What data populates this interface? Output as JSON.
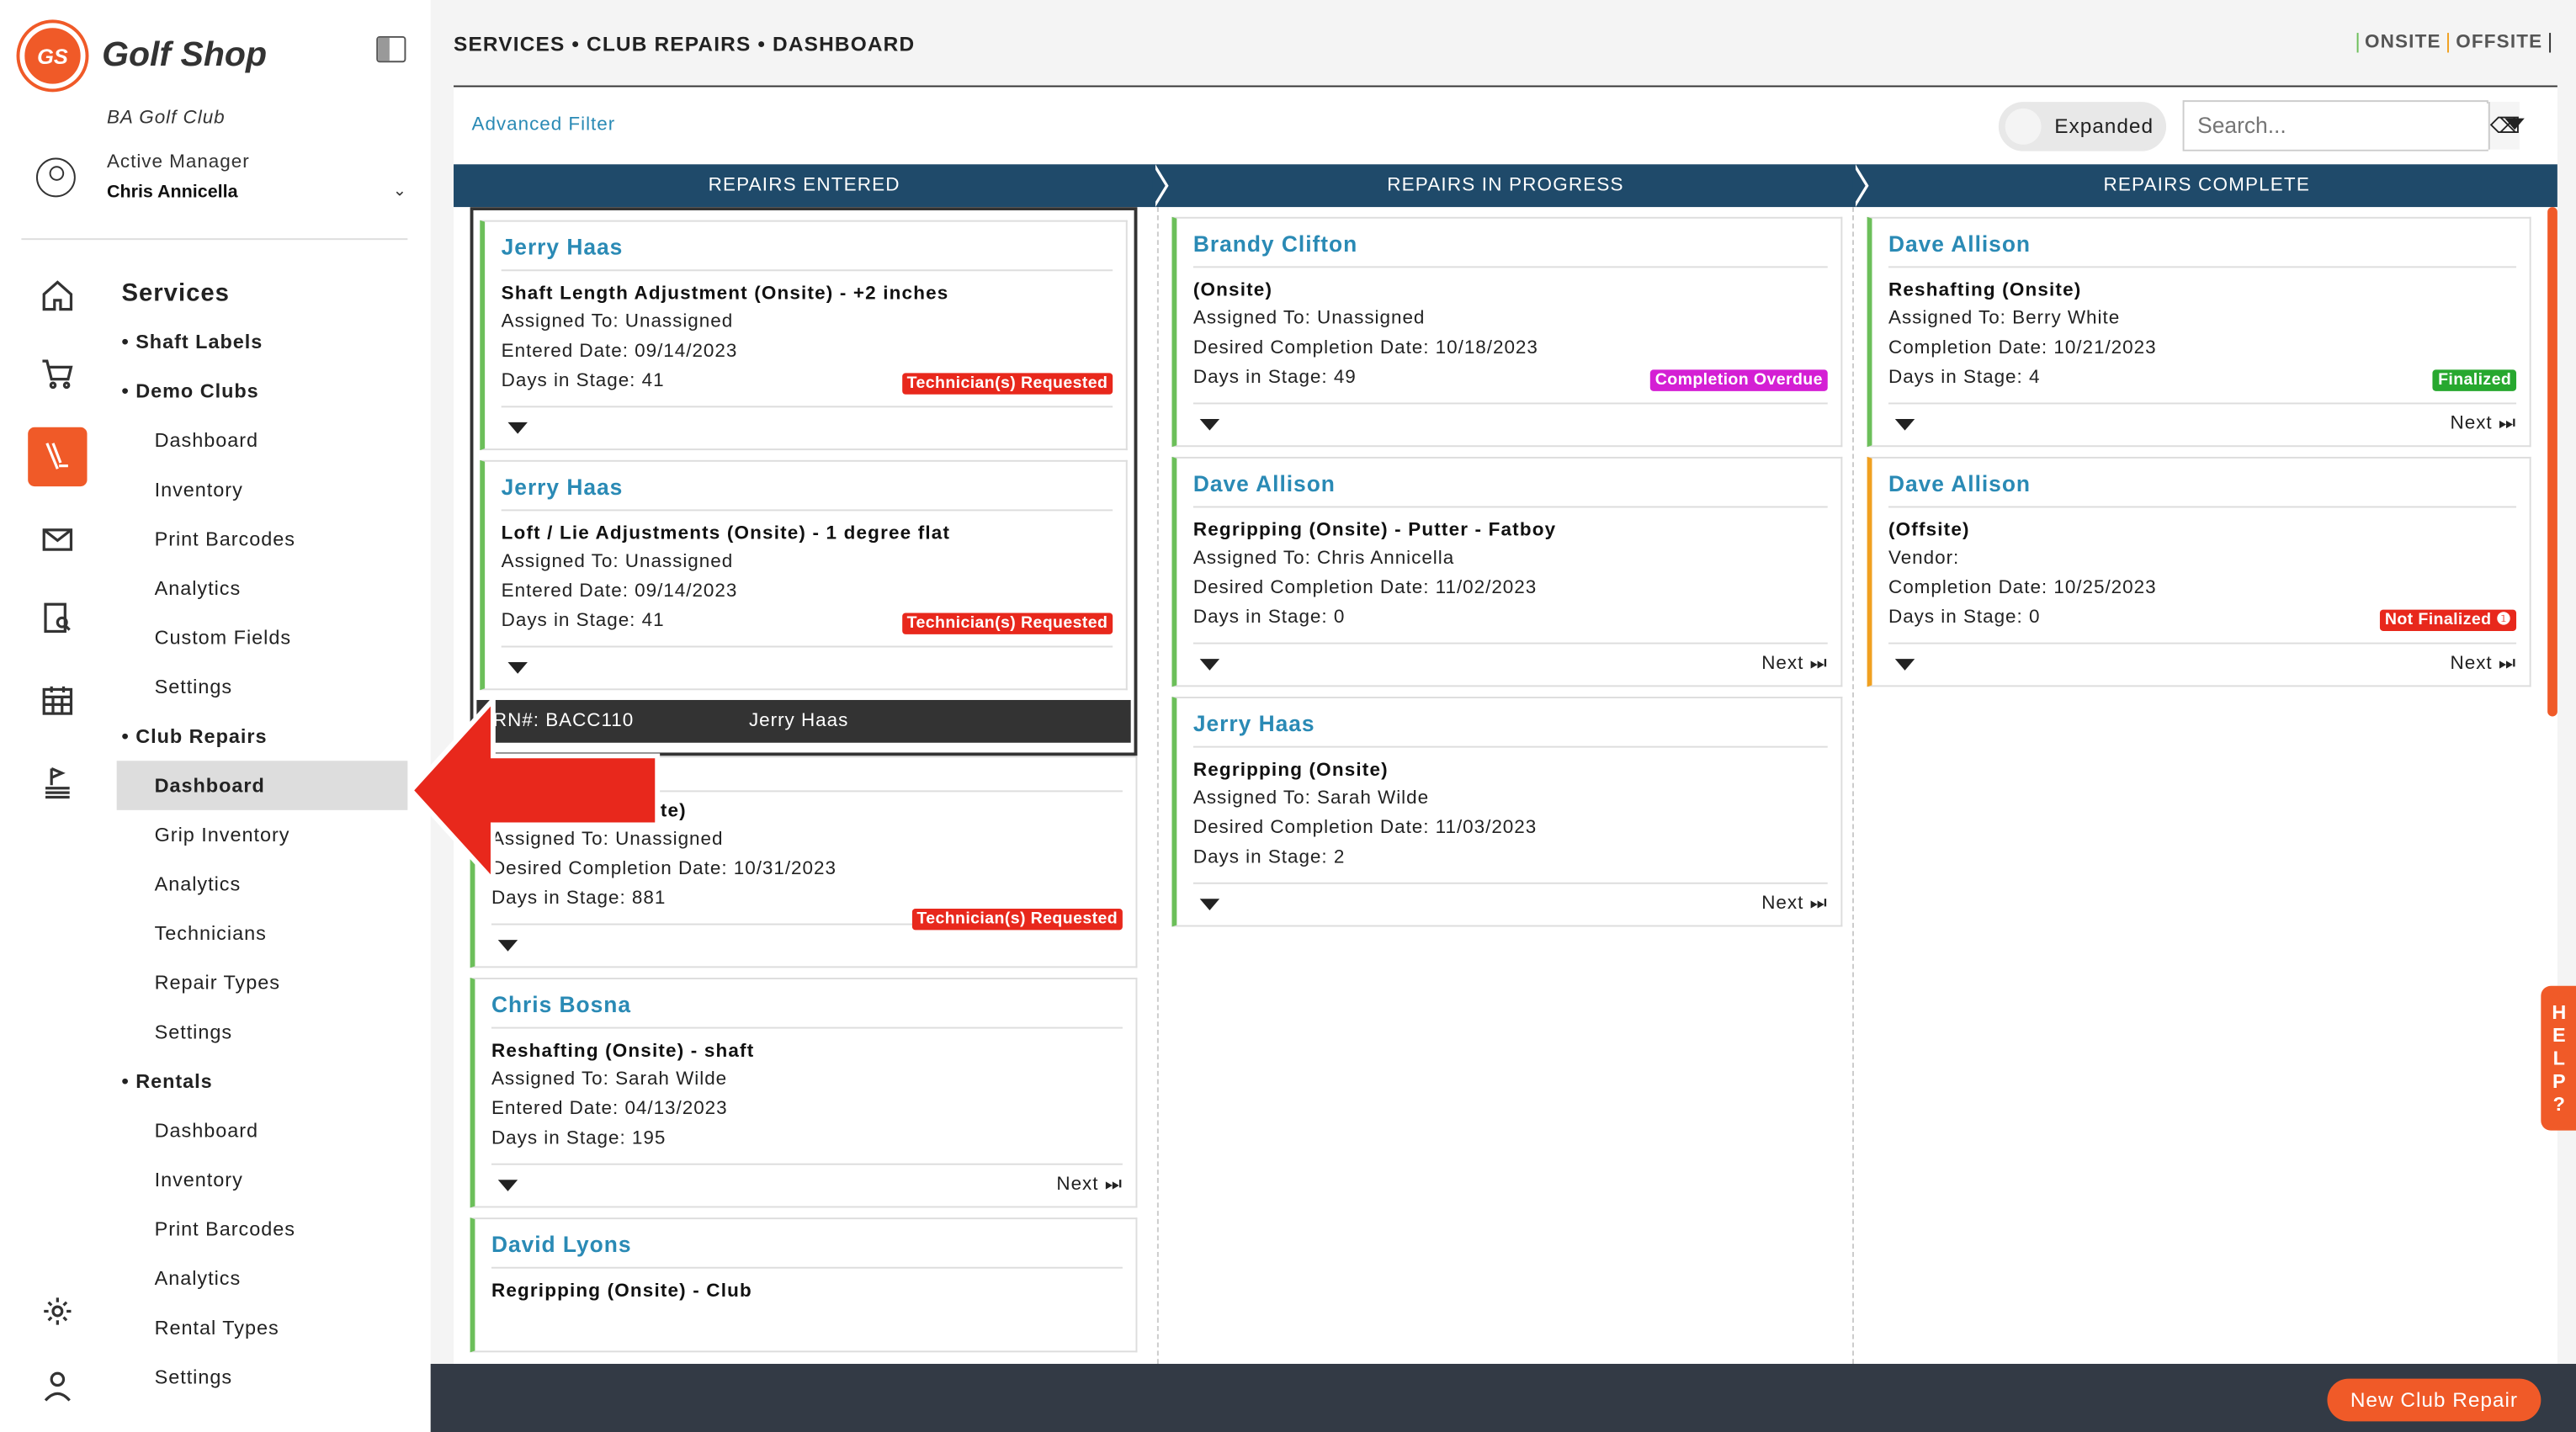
{
  "app": {
    "name": "Golf Shop",
    "logo_text": "GS",
    "club": "BA Golf Club",
    "manager_label": "Active Manager",
    "manager_name": "Chris Annicella"
  },
  "nav": {
    "title": "Services",
    "sections": [
      {
        "label": "• Shaft Labels",
        "items": []
      },
      {
        "label": "• Demo Clubs",
        "items": [
          "Dashboard",
          "Inventory",
          "Print Barcodes",
          "Analytics",
          "Custom Fields",
          "Settings"
        ]
      },
      {
        "label": "• Club Repairs",
        "items": [
          "Dashboard",
          "Grip Inventory",
          "Analytics",
          "Technicians",
          "Repair Types",
          "Settings"
        ]
      },
      {
        "label": "• Rentals",
        "items": [
          "Dashboard",
          "Inventory",
          "Print Barcodes",
          "Analytics",
          "Rental Types",
          "Settings"
        ]
      }
    ],
    "active_item": "Dashboard"
  },
  "header": {
    "breadcrumb": "SERVICES • CLUB REPAIRS • DASHBOARD",
    "onsite": "ONSITE",
    "offsite": "OFFSITE"
  },
  "toolbar": {
    "advanced_filter": "Advanced Filter",
    "expanded": "Expanded",
    "search_placeholder": "Search..."
  },
  "stages": [
    "REPAIRS ENTERED",
    "REPAIRS IN PROGRESS",
    "REPAIRS COMPLETE"
  ],
  "col1": {
    "cards": [
      {
        "name": "Jerry Haas",
        "type": "Shaft Length Adjustment (Onsite) - +2 inches",
        "l1": "Assigned To: Unassigned",
        "l2": "Entered Date: 09/14/2023",
        "l3": "Days in Stage: 41",
        "badge": "Technician(s) Requested"
      },
      {
        "name": "Jerry Haas",
        "type": "Loft / Lie Adjustments (Onsite) - 1 degree flat",
        "l1": "Assigned To: Unassigned",
        "l2": "Entered Date: 09/14/2023",
        "l3": "Days in Stage: 41",
        "badge": "Technician(s) Requested"
      }
    ],
    "hover_rn": "RN#: BACC110",
    "hover_name": "Jerry Haas",
    "card3": {
      "type": "Regripping (Onsite)",
      "l1": "Assigned To: Unassigned",
      "l2": "Desired Completion Date: 10/31/2023",
      "l3": "Days in Stage: 881",
      "badge": "Technician(s) Requested"
    },
    "card4": {
      "name": "Chris Bosna",
      "type": "Reshafting (Onsite) - shaft",
      "l1": "Assigned To: Sarah Wilde",
      "l2": "Entered Date: 04/13/2023",
      "l3": "Days in Stage: 195",
      "next": "Next"
    },
    "card5": {
      "name": "David Lyons",
      "type": "Regripping (Onsite) - Club"
    }
  },
  "col2": {
    "cards": [
      {
        "name": "Brandy Clifton",
        "type": "(Onsite)",
        "l1": "Assigned To: Unassigned",
        "l2": "Desired Completion Date: 10/18/2023",
        "l3": "Days in Stage: 49",
        "badge": "Completion Overdue"
      },
      {
        "name": "Dave Allison",
        "type": "Regripping (Onsite) - Putter - Fatboy",
        "l1": "Assigned To: Chris Annicella",
        "l2": "Desired Completion Date: 11/02/2023",
        "l3": "Days in Stage: 0",
        "next": "Next"
      },
      {
        "name": "Jerry Haas",
        "type": "Regripping (Onsite)",
        "l1": "Assigned To: Sarah Wilde",
        "l2": "Desired Completion Date: 11/03/2023",
        "l3": "Days in Stage: 2",
        "next": "Next"
      }
    ]
  },
  "col3": {
    "cards": [
      {
        "name": "Dave Allison",
        "type": "Reshafting (Onsite)",
        "l1": "Assigned To: Berry White",
        "l2": "Completion Date: 10/21/2023",
        "l3": "Days in Stage: 4",
        "badge": "Finalized",
        "next": "Next"
      },
      {
        "name": "Dave Allison",
        "type": "(Offsite)",
        "l1": "Vendor:",
        "l2": "Completion Date: 10/25/2023",
        "l3": "Days in Stage: 0",
        "badge": "Not Finalized ❶",
        "next": "Next"
      }
    ]
  },
  "footer": {
    "new_button": "New Club Repair"
  },
  "help": {
    "letters": [
      "H",
      "E",
      "L",
      "P",
      "?"
    ]
  },
  "colors": {
    "accent": "#f05a28",
    "stage_bar": "#1f4a6a",
    "link": "#2a8ab5",
    "green": "#6cbf5a",
    "orange": "#f0a020"
  }
}
